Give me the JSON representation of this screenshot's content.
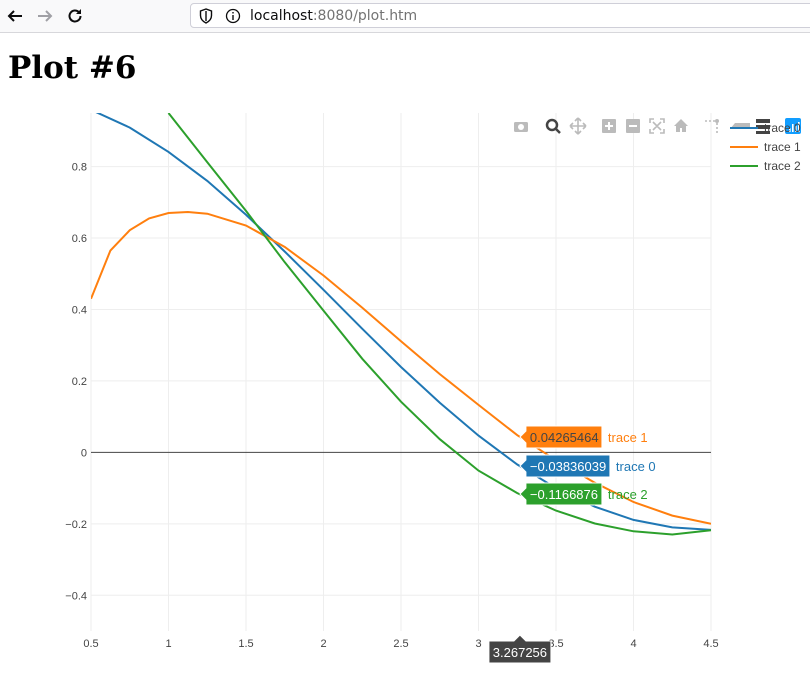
{
  "browser": {
    "url_host": "localhost",
    "url_rest": ":8080/plot.htm"
  },
  "page": {
    "title": "Plot #6"
  },
  "modebar": [
    "camera-icon",
    "zoom-icon",
    "pan-icon",
    "zoom-in-icon",
    "zoom-out-icon",
    "autoscale-icon",
    "reset-axes-icon",
    "spike-lines-icon",
    "hover-closest-icon",
    "hover-compare-icon",
    "plotly-logo-icon"
  ],
  "legend": {
    "entries": [
      "trace 0",
      "trace 1",
      "trace 2"
    ]
  },
  "hover": {
    "x_label": "3.267256",
    "labels": [
      {
        "series": "trace 1",
        "value": "0.04265464"
      },
      {
        "series": "trace 0",
        "value": "−0.03836039"
      },
      {
        "series": "trace 2",
        "value": "−0.1166876"
      }
    ]
  },
  "chart_data": {
    "type": "line",
    "xlim": [
      0.5,
      4.5
    ],
    "ylim": [
      -0.5,
      0.95
    ],
    "x_ticks": [
      0.5,
      1,
      1.5,
      2,
      2.5,
      3,
      3.5,
      4,
      4.5
    ],
    "x_tick_labels": [
      "0.5",
      "1",
      "1.5",
      "2",
      "2.5",
      "3",
      "3.5",
      "4",
      "4.5"
    ],
    "y_ticks": [
      -0.4,
      -0.2,
      0,
      0.2,
      0.4,
      0.6,
      0.8
    ],
    "y_tick_labels": [
      "−0.4",
      "−0.2",
      "0",
      "0.2",
      "0.4",
      "0.6",
      "0.8"
    ],
    "grid": true,
    "legend_position": "top-right",
    "series": [
      {
        "name": "trace 0",
        "color": "#1f77b4",
        "x": [
          0.5,
          0.75,
          1.0,
          1.25,
          1.5,
          1.75,
          2.0,
          2.25,
          2.5,
          2.75,
          3.0,
          3.25,
          3.5,
          3.75,
          4.0,
          4.25,
          4.5
        ],
        "y": [
          0.959,
          0.909,
          0.841,
          0.76,
          0.665,
          0.562,
          0.455,
          0.346,
          0.239,
          0.139,
          0.047,
          -0.034,
          -0.1,
          -0.152,
          -0.189,
          -0.21,
          -0.217
        ]
      },
      {
        "name": "trace 1",
        "color": "#ff7f0e",
        "x": [
          0.5,
          0.625,
          0.75,
          0.875,
          1.0,
          1.125,
          1.25,
          1.5,
          1.75,
          2.0,
          2.25,
          2.5,
          2.75,
          3.0,
          3.25,
          3.5,
          3.75,
          4.0,
          4.25,
          4.5
        ],
        "y": [
          0.43,
          0.565,
          0.622,
          0.655,
          0.67,
          0.673,
          0.668,
          0.635,
          0.575,
          0.495,
          0.405,
          0.311,
          0.219,
          0.133,
          0.048,
          -0.022,
          -0.085,
          -0.139,
          -0.177,
          -0.2
        ]
      },
      {
        "name": "trace 2",
        "color": "#2ca02c",
        "x": [
          1.0,
          1.25,
          1.5,
          1.75,
          2.0,
          2.25,
          2.5,
          2.75,
          3.0,
          3.25,
          3.5,
          3.75,
          4.0,
          4.25,
          4.5
        ],
        "y": [
          0.95,
          0.812,
          0.676,
          0.532,
          0.397,
          0.262,
          0.142,
          0.037,
          -0.051,
          -0.114,
          -0.163,
          -0.199,
          -0.221,
          -0.23,
          -0.218
        ]
      }
    ]
  }
}
